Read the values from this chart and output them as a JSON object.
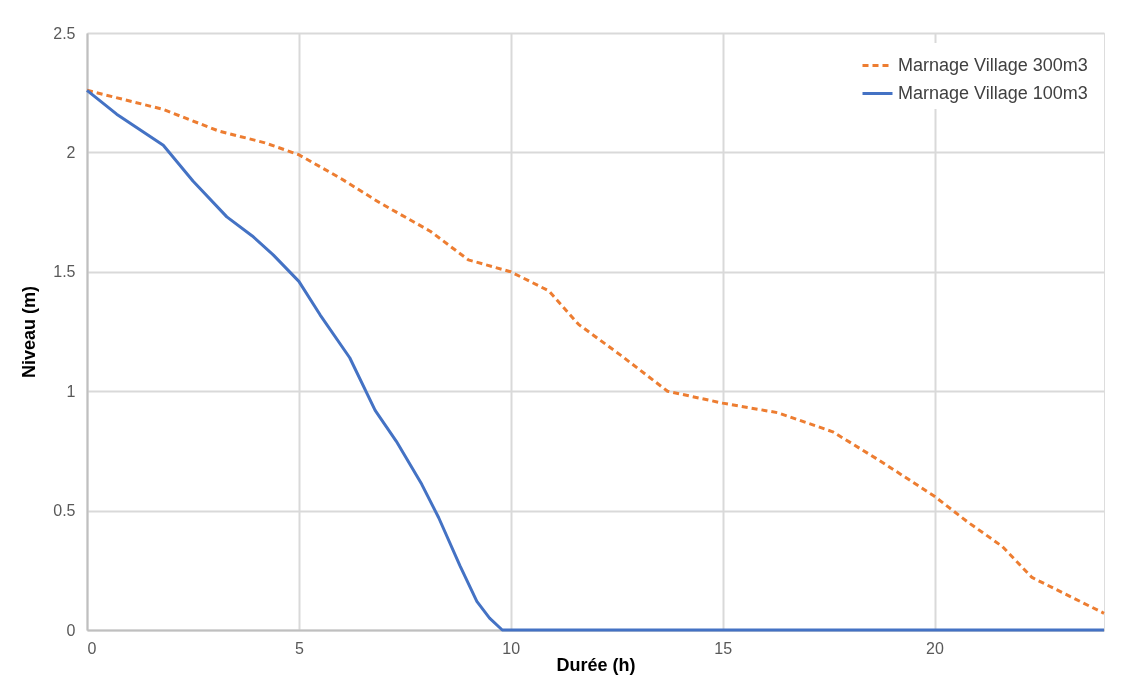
{
  "chart_data": {
    "type": "line",
    "xlabel": "Durée (h)",
    "ylabel": "Niveau (m)",
    "xlim": [
      0,
      24
    ],
    "xticks": [
      0,
      5,
      10,
      15,
      20
    ],
    "ylim": [
      0,
      2.5
    ],
    "yticks": [
      0,
      0.5,
      1,
      1.5,
      2,
      2.5
    ],
    "grid": true,
    "legend": "top right",
    "marker": "none",
    "series": [
      {
        "name": "Marnage Village 300m3",
        "color": "#ed7d31",
        "line_style": "dashed",
        "x": [
          0,
          0.9,
          1.8,
          3.1,
          4.2,
          5,
          6,
          6.9,
          8.1,
          9,
          10,
          10.9,
          11.6,
          12.6,
          13.7,
          15,
          16.3,
          17.6,
          18.7,
          20,
          20.8,
          21.6,
          22.3,
          24
        ],
        "values": [
          2.26,
          2.22,
          2.18,
          2.09,
          2.04,
          1.99,
          1.89,
          1.79,
          1.67,
          1.55,
          1.5,
          1.42,
          1.28,
          1.15,
          1.0,
          0.95,
          0.91,
          0.83,
          0.71,
          0.56,
          0.45,
          0.35,
          0.22,
          0.07
        ]
      },
      {
        "name": "Marnage Village 100m3",
        "color": "#4472c4",
        "line_style": "solid",
        "x": [
          0,
          0.7,
          1.8,
          2.5,
          3.3,
          3.9,
          4.4,
          5,
          5.5,
          6.2,
          6.8,
          7.3,
          7.9,
          8.3,
          8.8,
          9.2,
          9.5,
          9.8,
          24
        ],
        "values": [
          2.26,
          2.16,
          2.03,
          1.88,
          1.73,
          1.65,
          1.57,
          1.46,
          1.32,
          1.14,
          0.92,
          0.79,
          0.61,
          0.47,
          0.27,
          0.12,
          0.05,
          0,
          0
        ]
      }
    ]
  }
}
